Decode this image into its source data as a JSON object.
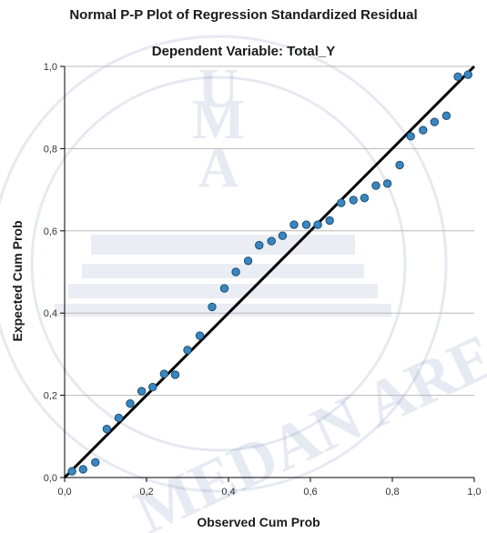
{
  "chart_data": {
    "type": "scatter",
    "title": "Normal P-P Plot of Regression Standardized Residual",
    "subtitle": "Dependent Variable: Total_Y",
    "xlabel": "Observed Cum Prob",
    "ylabel": "Expected Cum Prob",
    "xlim": [
      0.0,
      1.0
    ],
    "ylim": [
      0.0,
      1.0
    ],
    "x_ticks": [
      "0,0",
      "0,2",
      "0,4",
      "0,6",
      "0,8",
      "1,0"
    ],
    "y_ticks": [
      "0,0",
      "0,2",
      "0,4",
      "0,6",
      "0,8",
      "1,0"
    ],
    "grid": "horizontal",
    "reference_line": {
      "from": [
        0.0,
        0.0
      ],
      "to": [
        1.0,
        1.0
      ]
    },
    "points": [
      {
        "x": 0.018,
        "y": 0.015
      },
      {
        "x": 0.045,
        "y": 0.02
      },
      {
        "x": 0.075,
        "y": 0.037
      },
      {
        "x": 0.103,
        "y": 0.118
      },
      {
        "x": 0.132,
        "y": 0.145
      },
      {
        "x": 0.16,
        "y": 0.18
      },
      {
        "x": 0.188,
        "y": 0.21
      },
      {
        "x": 0.215,
        "y": 0.22
      },
      {
        "x": 0.243,
        "y": 0.252
      },
      {
        "x": 0.27,
        "y": 0.25
      },
      {
        "x": 0.3,
        "y": 0.31
      },
      {
        "x": 0.33,
        "y": 0.345
      },
      {
        "x": 0.36,
        "y": 0.415
      },
      {
        "x": 0.39,
        "y": 0.46
      },
      {
        "x": 0.418,
        "y": 0.5
      },
      {
        "x": 0.448,
        "y": 0.527
      },
      {
        "x": 0.475,
        "y": 0.565
      },
      {
        "x": 0.505,
        "y": 0.575
      },
      {
        "x": 0.532,
        "y": 0.588
      },
      {
        "x": 0.56,
        "y": 0.615
      },
      {
        "x": 0.59,
        "y": 0.615
      },
      {
        "x": 0.618,
        "y": 0.615
      },
      {
        "x": 0.647,
        "y": 0.625
      },
      {
        "x": 0.675,
        "y": 0.668
      },
      {
        "x": 0.705,
        "y": 0.675
      },
      {
        "x": 0.732,
        "y": 0.68
      },
      {
        "x": 0.76,
        "y": 0.71
      },
      {
        "x": 0.788,
        "y": 0.715
      },
      {
        "x": 0.818,
        "y": 0.76
      },
      {
        "x": 0.845,
        "y": 0.83
      },
      {
        "x": 0.875,
        "y": 0.845
      },
      {
        "x": 0.903,
        "y": 0.865
      },
      {
        "x": 0.932,
        "y": 0.88
      },
      {
        "x": 0.96,
        "y": 0.975
      },
      {
        "x": 0.985,
        "y": 0.98
      }
    ],
    "colors": {
      "point_fill": "#3a86c0",
      "point_stroke": "#1b4f72",
      "line": "#000000",
      "grid": "#b8b8b8",
      "axis": "#000000"
    }
  },
  "watermark": {
    "letters": [
      "U",
      "M",
      "A"
    ],
    "arc_text": "MEDAN AREA"
  }
}
